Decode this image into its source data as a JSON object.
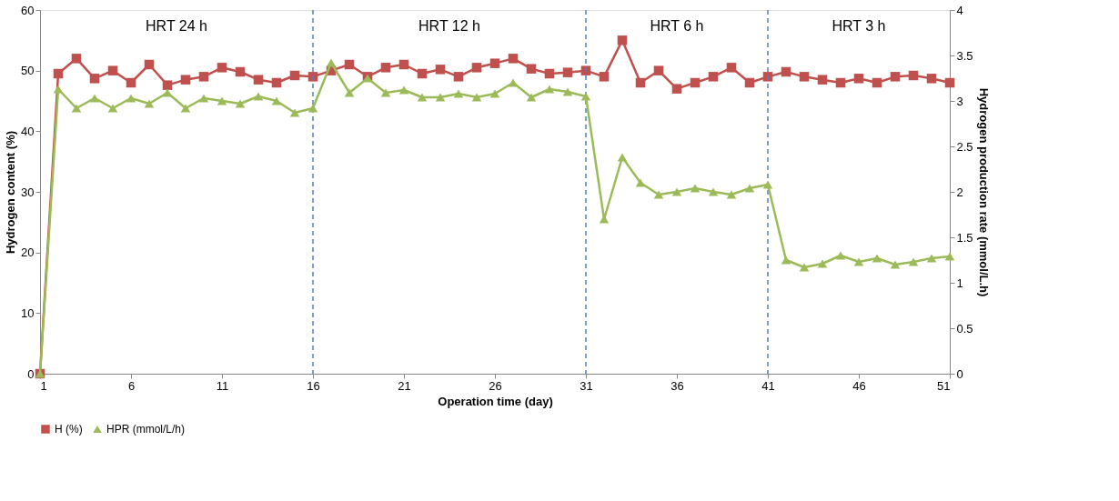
{
  "chart_data": {
    "type": "line",
    "xlabel": "Operation time (day)",
    "ylabel": "Hydrogen content (%)",
    "y2label": "Hydrogen production rate (mmol/L.h)",
    "x": [
      1,
      2,
      3,
      4,
      5,
      6,
      7,
      8,
      9,
      10,
      11,
      12,
      13,
      14,
      15,
      16,
      17,
      18,
      19,
      20,
      21,
      22,
      23,
      24,
      25,
      26,
      27,
      28,
      29,
      30,
      31,
      32,
      33,
      34,
      35,
      36,
      37,
      38,
      39,
      40,
      41,
      42,
      43,
      44,
      45,
      46,
      47,
      48,
      49,
      50,
      51
    ],
    "series": [
      {
        "name": "H (%)",
        "color": "#c0504d",
        "marker": "square",
        "values": [
          0,
          49.5,
          52,
          48.7,
          50,
          48,
          51,
          47.6,
          48.5,
          49,
          50.5,
          49.8,
          48.5,
          48,
          49.2,
          49,
          50,
          51,
          49,
          50.5,
          51,
          49.5,
          50.2,
          49,
          50.5,
          51.2,
          52,
          50.3,
          49.5,
          49.7,
          50,
          49,
          55,
          48,
          50,
          47,
          48,
          49,
          50.5,
          48,
          49,
          49.8,
          49,
          48.5,
          48,
          48.7,
          48,
          49,
          49.2,
          48.7,
          48
        ]
      },
      {
        "name": "HPR (mmol/L/h)",
        "color": "#9bbb59",
        "marker": "triangle",
        "axis": "y2",
        "values": [
          0,
          3.13,
          2.92,
          3.03,
          2.92,
          3.03,
          2.97,
          3.09,
          2.92,
          3.03,
          3.0,
          2.97,
          3.05,
          3.0,
          2.87,
          2.92,
          3.42,
          3.09,
          3.25,
          3.09,
          3.12,
          3.04,
          3.04,
          3.08,
          3.04,
          3.08,
          3.2,
          3.04,
          3.13,
          3.1,
          3.05,
          1.7,
          2.38,
          2.1,
          1.97,
          2.0,
          2.04,
          2.0,
          1.97,
          2.04,
          2.08,
          1.25,
          1.17,
          1.21,
          1.3,
          1.23,
          1.27,
          1.2,
          1.23,
          1.27,
          1.29
        ]
      }
    ],
    "xlim": [
      1,
      51
    ],
    "xticks": [
      1,
      6,
      11,
      16,
      21,
      26,
      31,
      36,
      41,
      46,
      51
    ],
    "ylim": [
      0,
      60
    ],
    "yticks": [
      0,
      10,
      20,
      30,
      40,
      50,
      60
    ],
    "y2lim": [
      0,
      4
    ],
    "y2ticks": [
      0,
      0.5,
      1,
      1.5,
      2,
      2.5,
      3,
      3.5,
      4
    ],
    "ref_lines": [
      {
        "axis": "x",
        "value": 16,
        "color": "#4f81bd",
        "line_style": "dashed"
      },
      {
        "axis": "x",
        "value": 31,
        "color": "#4f81bd",
        "line_style": "dashed"
      },
      {
        "axis": "x",
        "value": 41,
        "color": "#4f81bd",
        "line_style": "dashed"
      }
    ],
    "annotations": [
      "HRT 24 h",
      "HRT 12 h",
      "HRT 6 h",
      "HRT 3 h"
    ],
    "grid": false,
    "legend": "bottom",
    "line_style": "solid"
  }
}
